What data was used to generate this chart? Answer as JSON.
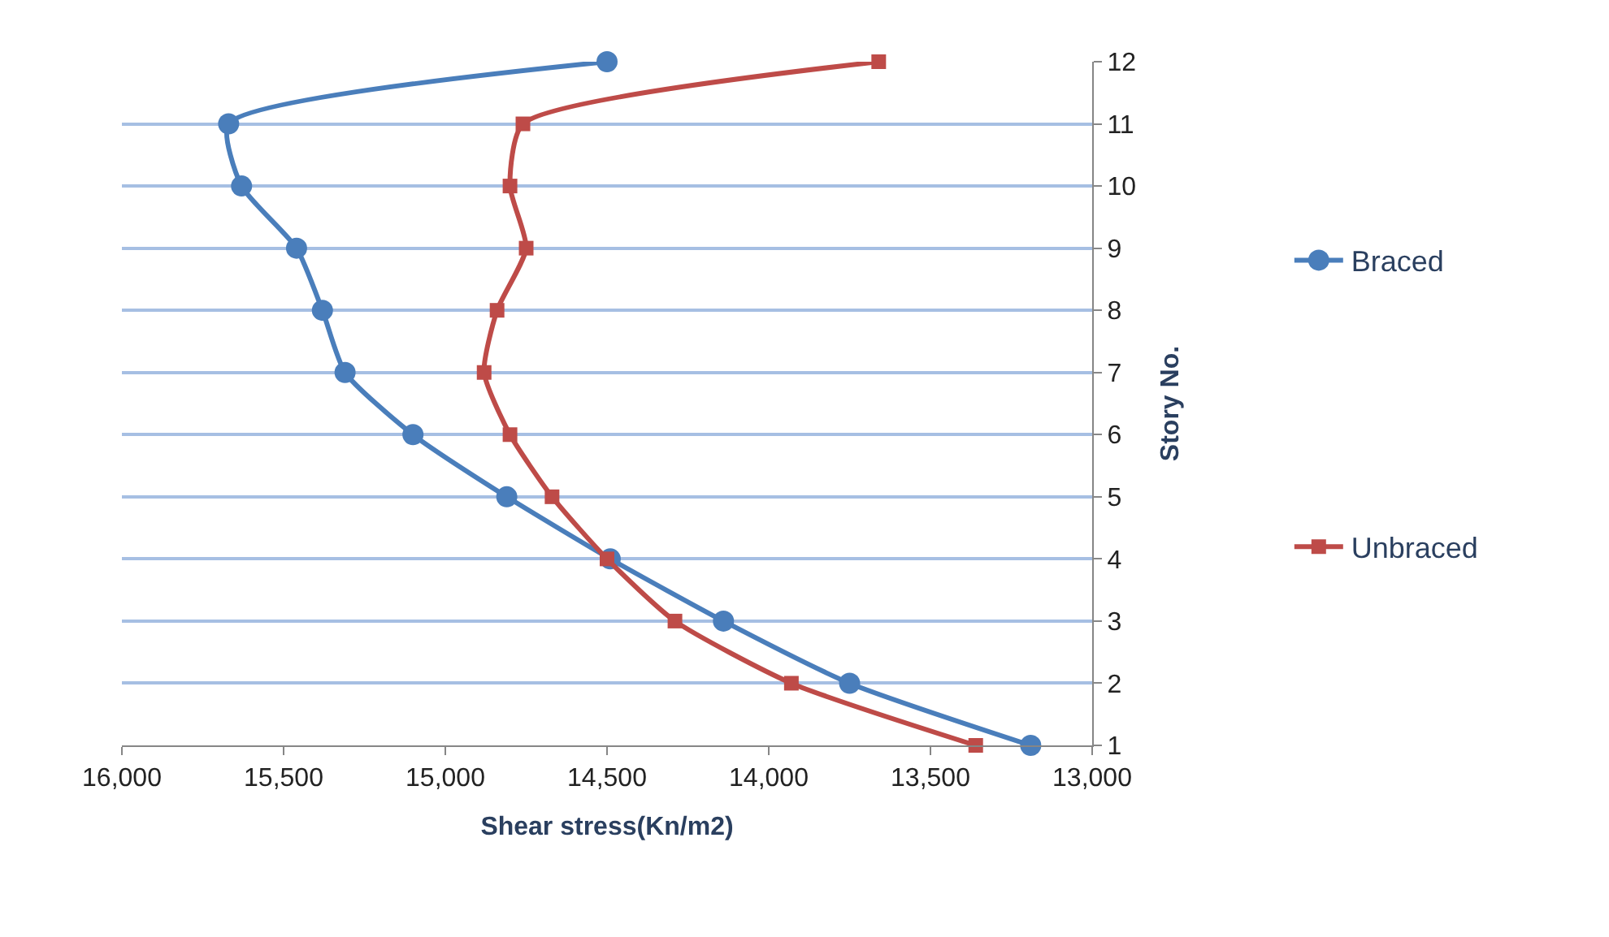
{
  "chart_data": {
    "type": "line",
    "xlabel": "Shear stress(Kn/m2)",
    "ylabel": "Story No.",
    "xlim": [
      16000,
      13000
    ],
    "xticks": [
      {
        "value": 16000,
        "label": "16,000"
      },
      {
        "value": 15500,
        "label": "15,500"
      },
      {
        "value": 15000,
        "label": "15,000"
      },
      {
        "value": 14500,
        "label": "14,500"
      },
      {
        "value": 14000,
        "label": "14,000"
      },
      {
        "value": 13500,
        "label": "13,500"
      },
      {
        "value": 13000,
        "label": "13,000"
      }
    ],
    "ylim": [
      1,
      12
    ],
    "yticks": [
      1,
      2,
      3,
      4,
      5,
      6,
      7,
      8,
      9,
      10,
      11,
      12
    ],
    "grid": "y",
    "legend": "right",
    "series": [
      {
        "name": "Braced",
        "color": "#4a7ebb",
        "marker": "circle",
        "values": [
          12,
          11,
          10,
          9,
          8,
          7,
          6,
          5,
          4,
          3,
          2,
          1
        ],
        "x": [
          14500,
          15670,
          15630,
          15460,
          15380,
          15310,
          15100,
          14810,
          14490,
          14140,
          13750,
          13190
        ]
      },
      {
        "name": "Unbraced",
        "color": "#be4b48",
        "marker": "square",
        "values": [
          12,
          11,
          10,
          9,
          8,
          7,
          6,
          5,
          4,
          3,
          2,
          1
        ],
        "x": [
          13660,
          14760,
          14800,
          14750,
          14840,
          14880,
          14800,
          14670,
          14500,
          14290,
          13930,
          13360
        ]
      }
    ]
  }
}
